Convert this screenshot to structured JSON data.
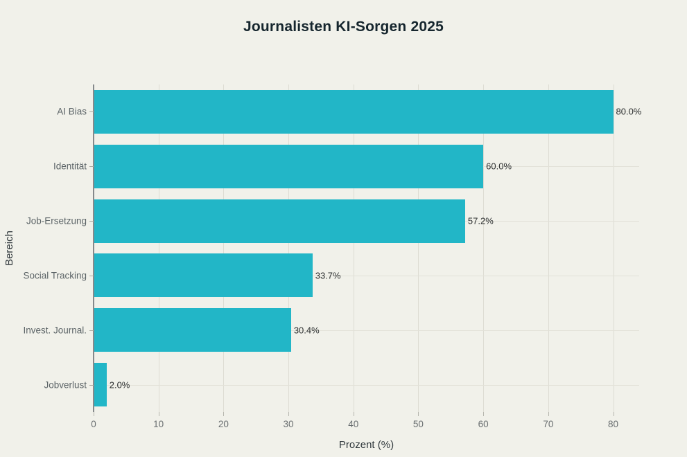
{
  "chart_data": {
    "type": "bar",
    "orientation": "horizontal",
    "title": "Journalisten KI-Sorgen 2025",
    "xlabel": "Prozent (%)",
    "ylabel": "Bereich",
    "categories": [
      "AI Bias",
      "Identität",
      "Job-Ersetzung",
      "Social Tracking",
      "Invest. Journal.",
      "Jobverlust"
    ],
    "values": [
      80.0,
      60.0,
      57.2,
      33.7,
      30.4,
      2.0
    ],
    "value_labels": [
      "80.0%",
      "60.0%",
      "57.2%",
      "33.7%",
      "30.4%",
      "2.0%"
    ],
    "x_ticks": [
      0,
      10,
      20,
      30,
      40,
      50,
      60,
      70,
      80
    ],
    "xlim": [
      0,
      84
    ],
    "grid": true,
    "legend": false,
    "bar_color": "#22b6c7",
    "background_color": "#f1f1ea",
    "gridline_color": "#dddcd3",
    "axis_line_color": "#85898b"
  }
}
